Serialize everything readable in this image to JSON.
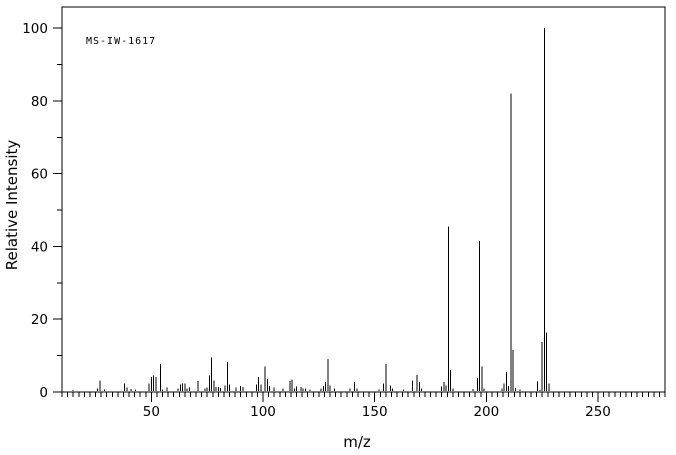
{
  "chart_data": {
    "type": "bar",
    "subtype": "mass-spectrum-stick-plot",
    "annotation": "MS-IW-1617",
    "xlabel": "m/z",
    "ylabel": "Relative Intensity",
    "xlim": [
      10,
      280
    ],
    "ylim": [
      0,
      105.8
    ],
    "x_ticks": [
      50,
      100,
      150,
      200,
      250
    ],
    "y_ticks": [
      0,
      20,
      40,
      60,
      80,
      100
    ],
    "x_minor_tick_step": 2.5,
    "y_minor_tick_step": 10,
    "grid": false,
    "legend": false,
    "line_color": "#000000",
    "background_color": "#ffffff",
    "peaks": [
      {
        "mz": 15,
        "ri": 0.5
      },
      {
        "mz": 26,
        "ri": 1.0
      },
      {
        "mz": 27,
        "ri": 3.2
      },
      {
        "mz": 29,
        "ri": 0.7
      },
      {
        "mz": 38,
        "ri": 2.3
      },
      {
        "mz": 39,
        "ri": 1.2
      },
      {
        "mz": 41,
        "ri": 0.8
      },
      {
        "mz": 43,
        "ri": 0.7
      },
      {
        "mz": 49,
        "ri": 2.3
      },
      {
        "mz": 50,
        "ri": 4.1
      },
      {
        "mz": 51,
        "ri": 4.6
      },
      {
        "mz": 52,
        "ri": 4.1
      },
      {
        "mz": 54,
        "ri": 7.7
      },
      {
        "mz": 55,
        "ri": 0.7
      },
      {
        "mz": 57,
        "ri": 1.2
      },
      {
        "mz": 62,
        "ri": 1.0
      },
      {
        "mz": 63,
        "ri": 2.0
      },
      {
        "mz": 64,
        "ri": 2.4
      },
      {
        "mz": 65,
        "ri": 2.3
      },
      {
        "mz": 66,
        "ri": 1.0
      },
      {
        "mz": 67,
        "ri": 1.3
      },
      {
        "mz": 71,
        "ri": 3.0
      },
      {
        "mz": 74,
        "ri": 1.0
      },
      {
        "mz": 75,
        "ri": 1.2
      },
      {
        "mz": 76,
        "ri": 4.6
      },
      {
        "mz": 77,
        "ri": 9.5
      },
      {
        "mz": 78,
        "ri": 3.2
      },
      {
        "mz": 79,
        "ri": 1.4
      },
      {
        "mz": 80,
        "ri": 1.4
      },
      {
        "mz": 81,
        "ri": 1.1
      },
      {
        "mz": 83,
        "ri": 1.8
      },
      {
        "mz": 84,
        "ri": 8.2
      },
      {
        "mz": 85,
        "ri": 2.0
      },
      {
        "mz": 88,
        "ri": 1.2
      },
      {
        "mz": 90,
        "ri": 1.6
      },
      {
        "mz": 91,
        "ri": 1.4
      },
      {
        "mz": 97,
        "ri": 2.0
      },
      {
        "mz": 98,
        "ri": 4.1
      },
      {
        "mz": 99,
        "ri": 2.0
      },
      {
        "mz": 101,
        "ri": 7.0
      },
      {
        "mz": 102,
        "ri": 3.6
      },
      {
        "mz": 103,
        "ri": 1.6
      },
      {
        "mz": 105,
        "ri": 1.3
      },
      {
        "mz": 109,
        "ri": 0.9
      },
      {
        "mz": 112,
        "ri": 3.0
      },
      {
        "mz": 113,
        "ri": 3.5
      },
      {
        "mz": 114,
        "ri": 1.0
      },
      {
        "mz": 115,
        "ri": 1.5
      },
      {
        "mz": 117,
        "ri": 1.4
      },
      {
        "mz": 118,
        "ri": 1.0
      },
      {
        "mz": 119,
        "ri": 0.9
      },
      {
        "mz": 121,
        "ri": 0.7
      },
      {
        "mz": 126,
        "ri": 0.9
      },
      {
        "mz": 127,
        "ri": 1.6
      },
      {
        "mz": 128,
        "ri": 2.7
      },
      {
        "mz": 129,
        "ri": 9.0
      },
      {
        "mz": 130,
        "ri": 1.8
      },
      {
        "mz": 132,
        "ri": 0.9
      },
      {
        "mz": 139,
        "ri": 1.0
      },
      {
        "mz": 141,
        "ri": 2.7
      },
      {
        "mz": 142,
        "ri": 1.0
      },
      {
        "mz": 152,
        "ri": 0.7
      },
      {
        "mz": 154,
        "ri": 2.3
      },
      {
        "mz": 155,
        "ri": 7.7
      },
      {
        "mz": 157,
        "ri": 1.8
      },
      {
        "mz": 158,
        "ri": 1.0
      },
      {
        "mz": 163,
        "ri": 0.7
      },
      {
        "mz": 167,
        "ri": 3.2
      },
      {
        "mz": 169,
        "ri": 4.7
      },
      {
        "mz": 170,
        "ri": 2.7
      },
      {
        "mz": 171,
        "ri": 1.0
      },
      {
        "mz": 180,
        "ri": 1.5
      },
      {
        "mz": 181,
        "ri": 2.7
      },
      {
        "mz": 182,
        "ri": 1.8
      },
      {
        "mz": 183,
        "ri": 45.5
      },
      {
        "mz": 184,
        "ri": 6.0
      },
      {
        "mz": 185,
        "ri": 1.0
      },
      {
        "mz": 194,
        "ri": 0.8
      },
      {
        "mz": 196,
        "ri": 3.8
      },
      {
        "mz": 197,
        "ri": 41.5
      },
      {
        "mz": 198,
        "ri": 7.0
      },
      {
        "mz": 199,
        "ri": 0.9
      },
      {
        "mz": 207,
        "ri": 0.9
      },
      {
        "mz": 208,
        "ri": 2.3
      },
      {
        "mz": 209,
        "ri": 5.5
      },
      {
        "mz": 210,
        "ri": 1.6
      },
      {
        "mz": 211,
        "ri": 82.0
      },
      {
        "mz": 212,
        "ri": 11.5
      },
      {
        "mz": 213,
        "ri": 1.1
      },
      {
        "mz": 215,
        "ri": 0.7
      },
      {
        "mz": 223,
        "ri": 2.9
      },
      {
        "mz": 224,
        "ri": 0.5
      },
      {
        "mz": 225,
        "ri": 13.8
      },
      {
        "mz": 226,
        "ri": 100.0
      },
      {
        "mz": 227,
        "ri": 16.4
      },
      {
        "mz": 228,
        "ri": 2.3
      }
    ]
  }
}
